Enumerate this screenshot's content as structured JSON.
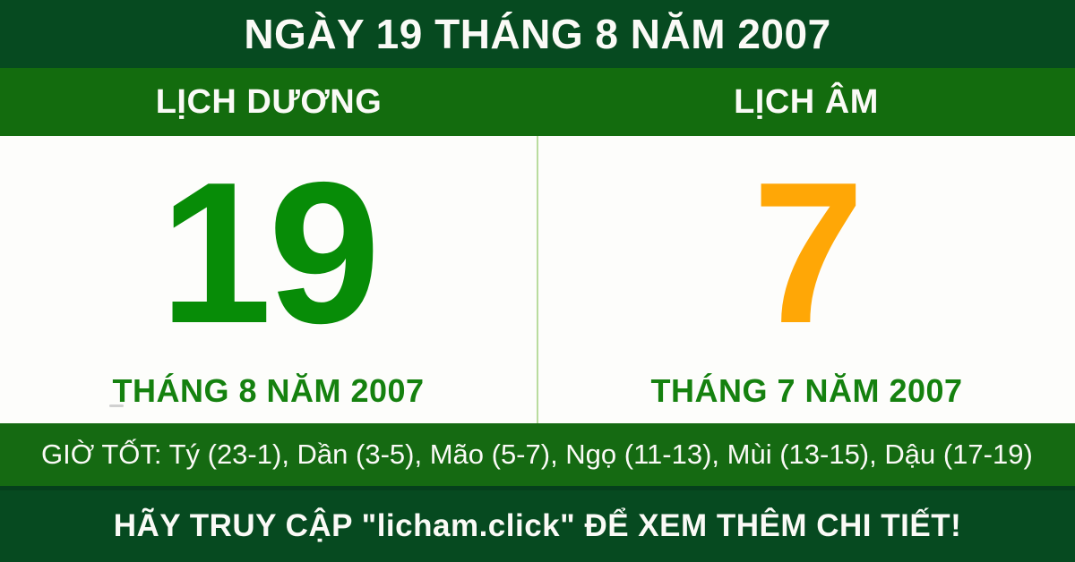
{
  "header": {
    "title": "NGÀY 19 THÁNG 8 NĂM 2007"
  },
  "calendar": {
    "solar": {
      "header": "LỊCH DƯƠNG",
      "day": "19",
      "month_year": "THÁNG 8 NĂM 2007"
    },
    "lunar": {
      "header": "LỊCH ÂM",
      "day": "7",
      "month_year": "THÁNG 7 NĂM 2007"
    }
  },
  "good_hours": {
    "text": "GIỜ TỐT: Tý (23-1), Dần (3-5), Mão (5-7), Ngọ (11-13), Mùi (13-15), Dậu (17-19)"
  },
  "footer": {
    "text": "HÃY TRUY CẬP \"licham.click\" ĐỂ XEM THÊM CHI TIẾT!"
  },
  "colors": {
    "top_bar_bg": "#064a20",
    "band_bg": "#136c0e",
    "hours_bg": "#156a12",
    "footer_bg": "#064a20",
    "footer_edge": "#05401c",
    "solar_day": "#078c07",
    "lunar_day": "#ffa706",
    "month_text": "#15810f",
    "divider": "#b9dc9e",
    "white_bg": "#fdfdfb",
    "text_light": "#fafaf6"
  }
}
